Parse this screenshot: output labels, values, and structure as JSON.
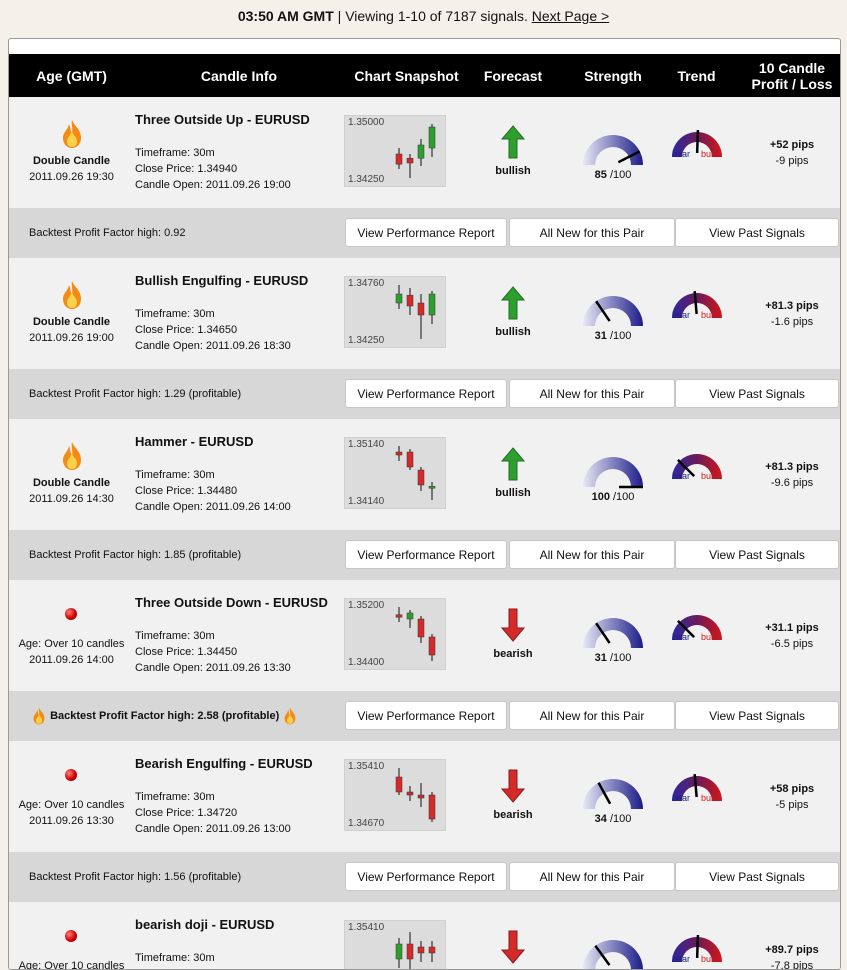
{
  "topbar": {
    "time": "03:50 AM GMT",
    "text": " | Viewing 1-10 of 7187 signals. ",
    "next": "Next Page >"
  },
  "columns": {
    "age": "Age (GMT)",
    "candle": "Candle Info",
    "chart": "Chart Snapshot",
    "forecast": "Forecast",
    "strength": "Strength",
    "trend": "Trend",
    "pl1": "10 Candle",
    "pl2": "Profit / Loss"
  },
  "buttons": {
    "report": "View Performance Report",
    "pair": "All New for this Pair",
    "past": "View Past Signals"
  },
  "signals": [
    {
      "age_icon": "flame-icon",
      "age1": "Double Candle",
      "age2": "2011.09.26 19:30",
      "title": "Three Outside Up - EURUSD",
      "timeframe": "Timeframe: 30m",
      "close": "Close Price: 1.34940",
      "open": "Candle Open: 2011.09.26 19:00",
      "chart_hi": "1.35000",
      "chart_lo": "1.34250",
      "forecast": "bullish",
      "strength": 85,
      "strength_total": " /100",
      "trend": "bull",
      "profit": "+52 pips",
      "loss": "-9 pips",
      "factor": "Backtest Profit Factor high: 0.92",
      "factor_highlight": false
    },
    {
      "age_icon": "flame-icon",
      "age1": "Double Candle",
      "age2": "2011.09.26 19:00",
      "title": "Bullish Engulfing - EURUSD",
      "timeframe": "Timeframe: 30m",
      "close": "Close Price: 1.34650",
      "open": "Candle Open: 2011.09.26 18:30",
      "chart_hi": "1.34760",
      "chart_lo": "1.34250",
      "forecast": "bullish",
      "strength": 31,
      "strength_total": " /100",
      "trend": "neutral",
      "profit": "+81.3 pips",
      "loss": "-1.6 pips",
      "factor": "Backtest Profit Factor high: 1.29 (profitable)",
      "factor_highlight": false
    },
    {
      "age_icon": "flame-icon",
      "age1": "Double Candle",
      "age2": "2011.09.26 14:30",
      "title": "Hammer - EURUSD",
      "timeframe": "Timeframe: 30m",
      "close": "Close Price: 1.34480",
      "open": "Candle Open: 2011.09.26 14:00",
      "chart_hi": "1.35140",
      "chart_lo": "1.34140",
      "forecast": "bullish",
      "strength": 100,
      "strength_total": " /100",
      "trend": "bear",
      "profit": "+81.3 pips",
      "loss": "-9.6 pips",
      "factor": "Backtest Profit Factor high: 1.85 (profitable)",
      "factor_highlight": false
    },
    {
      "age_icon": "red-dot-icon",
      "age1": "Age: Over 10 candles",
      "age2": "2011.09.26 14:00",
      "title": "Three Outside Down - EURUSD",
      "timeframe": "Timeframe: 30m",
      "close": "Close Price: 1.34450",
      "open": "Candle Open: 2011.09.26 13:30",
      "chart_hi": "1.35200",
      "chart_lo": "1.34400",
      "forecast": "bearish",
      "strength": 31,
      "strength_total": " /100",
      "trend": "bear",
      "profit": "+31.1 pips",
      "loss": "-6.5 pips",
      "factor": "Backtest Profit Factor high: 2.58 (profitable)",
      "factor_highlight": true
    },
    {
      "age_icon": "red-dot-icon",
      "age1": "Age: Over 10 candles",
      "age2": "2011.09.26 13:30",
      "title": "Bearish Engulfing - EURUSD",
      "timeframe": "Timeframe: 30m",
      "close": "Close Price: 1.34720",
      "open": "Candle Open: 2011.09.26 13:00",
      "chart_hi": "1.35410",
      "chart_lo": "1.34670",
      "forecast": "bearish",
      "strength": 34,
      "strength_total": " /100",
      "trend": "neutral",
      "profit": "+58 pips",
      "loss": "-5 pips",
      "factor": "Backtest Profit Factor high: 1.56 (profitable)",
      "factor_highlight": false
    },
    {
      "age_icon": "red-dot-icon",
      "age1": "Age: Over 10 candles",
      "age2": "",
      "title": "bearish doji - EURUSD",
      "timeframe": "Timeframe: 30m",
      "close": "",
      "open": "",
      "chart_hi": "1.35410",
      "chart_lo": "",
      "forecast": "bearish",
      "strength": 30,
      "strength_total": "",
      "trend": "bull",
      "profit": "+89.7 pips",
      "loss": "-7.8 pips",
      "factor": "",
      "factor_highlight": false
    }
  ],
  "colors": {
    "bull": "#2e9f2e",
    "bear": "#d42a2a",
    "gauge": "#1c1c88",
    "header": "#000000"
  }
}
